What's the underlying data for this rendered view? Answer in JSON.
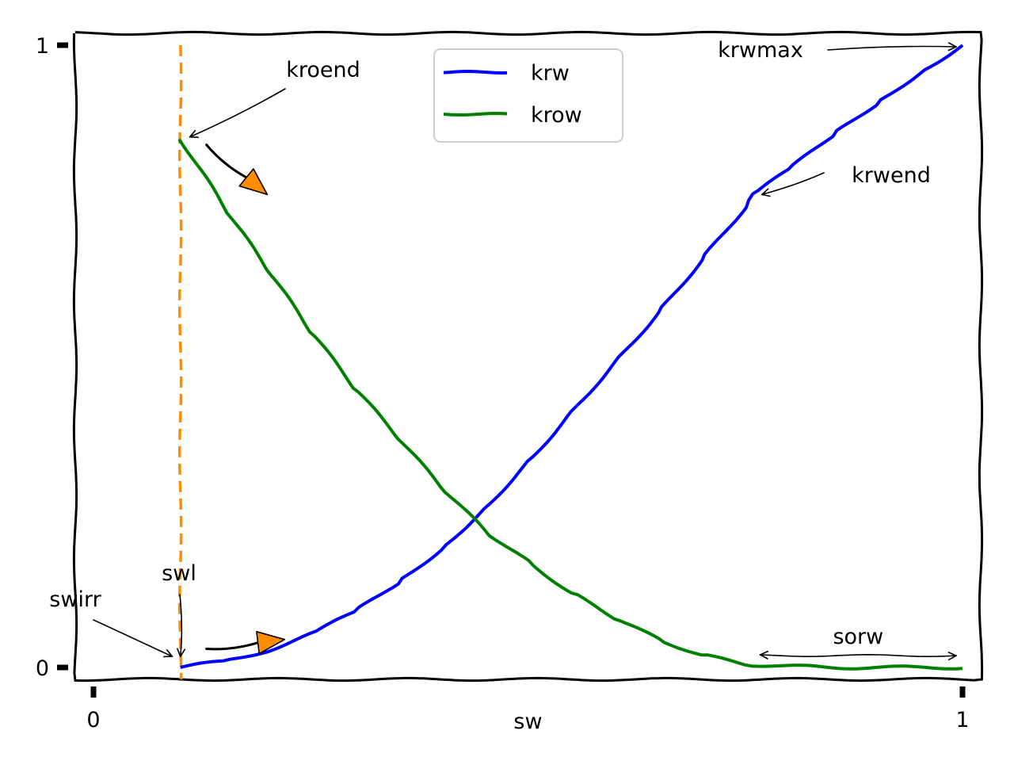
{
  "chart_data": {
    "type": "line",
    "title": "",
    "xlabel": "sw",
    "ylabel": "",
    "xlim": [
      0,
      1
    ],
    "ylim": [
      0,
      1
    ],
    "xticks": [
      {
        "value": 0,
        "label": "0"
      },
      {
        "value": 1,
        "label": "1"
      }
    ],
    "yticks": [
      {
        "value": 0,
        "label": "0"
      },
      {
        "value": 1,
        "label": "1"
      }
    ],
    "grid": false,
    "legend": "top-center",
    "series": [
      {
        "name": "krw",
        "color": "#0000ff",
        "x": [
          0.1,
          0.15,
          0.2,
          0.25,
          0.3,
          0.35,
          0.4,
          0.45,
          0.5,
          0.55,
          0.6,
          0.65,
          0.7,
          0.75,
          0.76,
          0.8,
          0.85,
          0.9,
          0.95,
          1.0
        ],
        "y": [
          0.0,
          0.01,
          0.027,
          0.053,
          0.089,
          0.136,
          0.19,
          0.255,
          0.33,
          0.41,
          0.49,
          0.57,
          0.655,
          0.74,
          0.76,
          0.8,
          0.855,
          0.905,
          0.955,
          1.0
        ]
      },
      {
        "name": "krow",
        "color": "#008000",
        "x": [
          0.1,
          0.15,
          0.2,
          0.25,
          0.3,
          0.35,
          0.4,
          0.45,
          0.5,
          0.55,
          0.6,
          0.65,
          0.7,
          0.75,
          0.8,
          0.85,
          0.9,
          0.95,
          1.0
        ],
        "y": [
          0.85,
          0.74,
          0.64,
          0.54,
          0.45,
          0.37,
          0.29,
          0.22,
          0.17,
          0.12,
          0.08,
          0.045,
          0.02,
          0.005,
          0.002,
          0.0,
          0.0,
          0.0,
          0.0
        ]
      }
    ],
    "reference_lines": [
      {
        "orientation": "vertical",
        "x": 0.1,
        "color": "#ff8c00",
        "style": "dashed"
      }
    ],
    "annotations": [
      {
        "text": "swirr",
        "points_to": {
          "x": 0.045,
          "y": 0.005
        }
      },
      {
        "text": "swl",
        "points_to": {
          "x": 0.1,
          "y": 0.01
        }
      },
      {
        "text": "kroend",
        "points_to": {
          "x": 0.1,
          "y": 0.85
        }
      },
      {
        "text": "krwend",
        "points_to": {
          "x": 0.76,
          "y": 0.76
        }
      },
      {
        "text": "krwmax",
        "points_to": {
          "x": 1.0,
          "y": 1.0
        }
      },
      {
        "text": "sorw",
        "span": [
          0.76,
          1.0
        ]
      }
    ],
    "direction_arrows": [
      {
        "from": {
          "x": 0.13,
          "y": 0.84
        },
        "to": {
          "x": 0.2,
          "y": 0.76
        },
        "color": "#ff8c00"
      },
      {
        "from": {
          "x": 0.13,
          "y": 0.03
        },
        "to": {
          "x": 0.22,
          "y": 0.045
        },
        "color": "#ff8c00"
      }
    ]
  }
}
